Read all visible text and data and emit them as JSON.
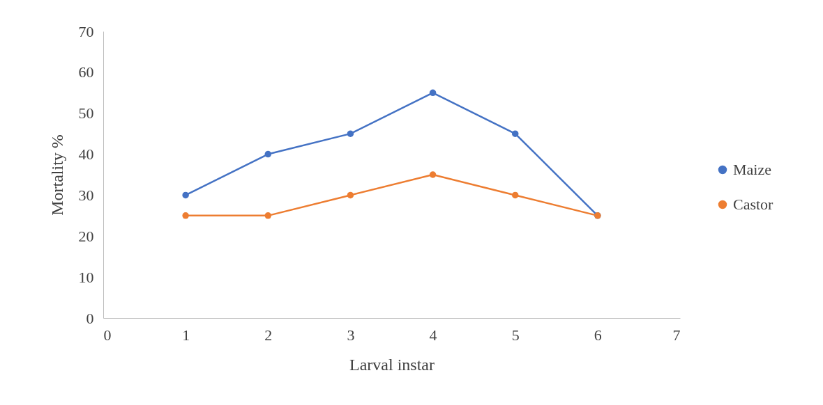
{
  "chart_data": {
    "type": "line",
    "xlabel": "Larval instar",
    "ylabel": "Mortality %",
    "x": [
      1,
      2,
      3,
      4,
      5,
      6
    ],
    "series": [
      {
        "name": "Maize",
        "color": "#4472c4",
        "values": [
          30,
          40,
          45,
          55,
          45,
          25
        ]
      },
      {
        "name": "Castor",
        "color": "#ed7d31",
        "values": [
          25,
          25,
          30,
          35,
          30,
          25
        ]
      }
    ],
    "xlim": [
      0,
      7
    ],
    "xticks": [
      0,
      1,
      2,
      3,
      4,
      5,
      6,
      7
    ],
    "ylim": [
      0,
      70
    ],
    "yticks": [
      0,
      10,
      20,
      30,
      40,
      50,
      60,
      70
    ],
    "legend": "right",
    "marker": "circle",
    "line_style": "solid"
  }
}
